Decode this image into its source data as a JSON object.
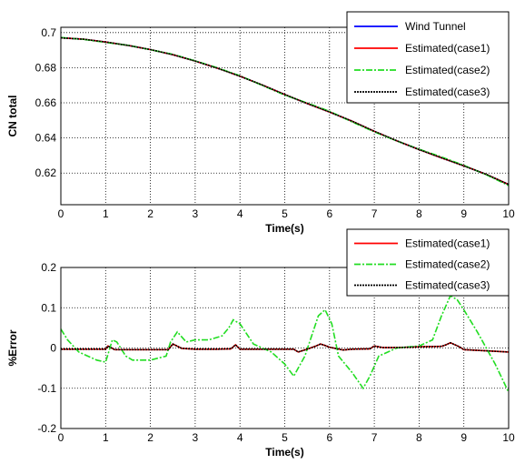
{
  "chart_data": [
    {
      "type": "line",
      "xlabel": "Time(s)",
      "ylabel": "CN total",
      "xlim": [
        0,
        10
      ],
      "ylim": [
        0.602,
        0.703
      ],
      "xticks": [
        "0",
        "1",
        "2",
        "3",
        "4",
        "5",
        "6",
        "7",
        "8",
        "9",
        "10"
      ],
      "yticks": [
        "0.62",
        "0.64",
        "0.66",
        "0.68",
        "0.7"
      ],
      "grid": true,
      "legend_position": "top-right",
      "series": [
        {
          "name": "Wind Tunnel",
          "color": "#0000ff",
          "style": "solid",
          "x": [
            0,
            0.5,
            1,
            1.5,
            2,
            2.5,
            3,
            3.5,
            4,
            4.5,
            5,
            5.5,
            6,
            6.5,
            7,
            7.5,
            8,
            8.5,
            9,
            9.5,
            10
          ],
          "y": [
            0.697,
            0.6962,
            0.6946,
            0.6927,
            0.6903,
            0.6874,
            0.6838,
            0.6797,
            0.6752,
            0.6701,
            0.6647,
            0.6596,
            0.6548,
            0.6496,
            0.6438,
            0.6384,
            0.6334,
            0.6287,
            0.6241,
            0.6193,
            0.6135
          ]
        },
        {
          "name": "Estimated(case1)",
          "color": "#ff0000",
          "style": "solid",
          "x": [
            0,
            0.5,
            1,
            1.5,
            2,
            2.5,
            3,
            3.5,
            4,
            4.5,
            5,
            5.5,
            6,
            6.5,
            7,
            7.5,
            8,
            8.5,
            9,
            9.5,
            10
          ],
          "y": [
            0.697,
            0.6962,
            0.6946,
            0.6927,
            0.6903,
            0.6874,
            0.6838,
            0.6797,
            0.6752,
            0.6701,
            0.6647,
            0.6596,
            0.6548,
            0.6496,
            0.6438,
            0.6384,
            0.6334,
            0.6287,
            0.6241,
            0.6193,
            0.6135
          ]
        },
        {
          "name": "Estimated(case2)",
          "color": "#22dd22",
          "style": "dashdot",
          "x": [
            0,
            0.5,
            1,
            1.5,
            2,
            2.5,
            3,
            3.5,
            4,
            4.5,
            5,
            5.5,
            6,
            6.5,
            7,
            7.5,
            8,
            8.5,
            9,
            9.5,
            10
          ],
          "y": [
            0.6972,
            0.6961,
            0.6944,
            0.6928,
            0.6902,
            0.6876,
            0.6839,
            0.6799,
            0.6754,
            0.6699,
            0.6644,
            0.6599,
            0.6552,
            0.6492,
            0.6435,
            0.6383,
            0.6336,
            0.6292,
            0.6244,
            0.6191,
            0.6129
          ]
        },
        {
          "name": "Estimated(case3)",
          "color": "#000000",
          "style": "dotted",
          "x": [
            0,
            0.5,
            1,
            1.5,
            2,
            2.5,
            3,
            3.5,
            4,
            4.5,
            5,
            5.5,
            6,
            6.5,
            7,
            7.5,
            8,
            8.5,
            9,
            9.5,
            10
          ],
          "y": [
            0.697,
            0.6962,
            0.6946,
            0.6927,
            0.6903,
            0.6874,
            0.6838,
            0.6797,
            0.6752,
            0.6701,
            0.6647,
            0.6596,
            0.6548,
            0.6496,
            0.6438,
            0.6384,
            0.6334,
            0.6287,
            0.6241,
            0.6193,
            0.6135
          ]
        }
      ]
    },
    {
      "type": "line",
      "xlabel": "Time(s)",
      "ylabel": "%Error",
      "xlim": [
        0,
        10
      ],
      "ylim": [
        -0.2,
        0.2
      ],
      "xticks": [
        "0",
        "1",
        "2",
        "3",
        "4",
        "5",
        "6",
        "7",
        "8",
        "9",
        "10"
      ],
      "yticks": [
        "-0.2",
        "-0.1",
        "0",
        "0.1",
        "0.2"
      ],
      "grid": true,
      "legend_position": "top-right",
      "series": [
        {
          "name": "Estimated(case1)",
          "color": "#ff0000",
          "style": "solid",
          "x": [
            0,
            0.5,
            1,
            1.05,
            1.2,
            1.5,
            2,
            2.4,
            2.5,
            2.7,
            3,
            3.5,
            3.8,
            3.9,
            4,
            4.5,
            5,
            5.2,
            5.3,
            5.5,
            5.7,
            5.8,
            5.9,
            6,
            6.3,
            6.5,
            6.9,
            7,
            7.2,
            7.5,
            8,
            8.5,
            8.6,
            8.7,
            8.9,
            9,
            9.5,
            10
          ],
          "y": [
            -0.003,
            -0.003,
            -0.003,
            0.005,
            -0.004,
            -0.004,
            -0.004,
            -0.004,
            0.01,
            -0.001,
            -0.003,
            -0.003,
            -0.002,
            0.008,
            -0.003,
            -0.003,
            -0.003,
            -0.003,
            -0.01,
            -0.003,
            0.005,
            0.01,
            0.006,
            0.002,
            -0.005,
            -0.003,
            -0.002,
            0.005,
            0.001,
            0.001,
            0.003,
            0.004,
            0.008,
            0.013,
            0.003,
            -0.004,
            -0.007,
            -0.01
          ]
        },
        {
          "name": "Estimated(case2)",
          "color": "#22dd22",
          "style": "dashdot",
          "x": [
            0,
            0.15,
            0.4,
            0.8,
            1.0,
            1.15,
            1.25,
            1.45,
            1.6,
            2.0,
            2.35,
            2.45,
            2.6,
            2.8,
            3.0,
            3.3,
            3.6,
            3.75,
            3.85,
            4.0,
            4.3,
            4.7,
            5.0,
            5.2,
            5.3,
            5.45,
            5.6,
            5.75,
            5.9,
            6.05,
            6.2,
            6.5,
            6.75,
            6.9,
            7.1,
            7.5,
            8.0,
            8.3,
            8.5,
            8.7,
            8.85,
            9.0,
            9.3,
            9.7,
            10
          ],
          "y": [
            0.047,
            0.02,
            -0.01,
            -0.03,
            -0.035,
            0.02,
            0.015,
            -0.02,
            -0.03,
            -0.03,
            -0.02,
            0.015,
            0.04,
            0.015,
            0.02,
            0.02,
            0.03,
            0.05,
            0.07,
            0.06,
            0.01,
            -0.01,
            -0.04,
            -0.07,
            -0.05,
            -0.02,
            0.03,
            0.08,
            0.095,
            0.06,
            -0.02,
            -0.06,
            -0.1,
            -0.07,
            -0.02,
            0.0,
            0.005,
            0.02,
            0.08,
            0.13,
            0.12,
            0.095,
            0.04,
            -0.04,
            -0.11
          ]
        },
        {
          "name": "Estimated(case3)",
          "color": "#000000",
          "style": "dotted",
          "x": [
            0,
            0.5,
            1,
            1.05,
            1.2,
            1.5,
            2,
            2.4,
            2.5,
            2.7,
            3,
            3.5,
            3.8,
            3.9,
            4,
            4.5,
            5,
            5.2,
            5.3,
            5.5,
            5.7,
            5.8,
            5.9,
            6,
            6.3,
            6.5,
            6.9,
            7,
            7.2,
            7.5,
            8,
            8.5,
            8.6,
            8.7,
            8.9,
            9,
            9.5,
            10
          ],
          "y": [
            -0.003,
            -0.003,
            -0.003,
            0.005,
            -0.004,
            -0.004,
            -0.004,
            -0.004,
            0.01,
            -0.001,
            -0.003,
            -0.003,
            -0.002,
            0.008,
            -0.003,
            -0.003,
            -0.003,
            -0.003,
            -0.01,
            -0.003,
            0.005,
            0.01,
            0.006,
            0.002,
            -0.005,
            -0.003,
            -0.002,
            0.005,
            0.001,
            0.001,
            0.003,
            0.004,
            0.008,
            0.013,
            0.003,
            -0.004,
            -0.007,
            -0.01
          ]
        }
      ]
    }
  ]
}
